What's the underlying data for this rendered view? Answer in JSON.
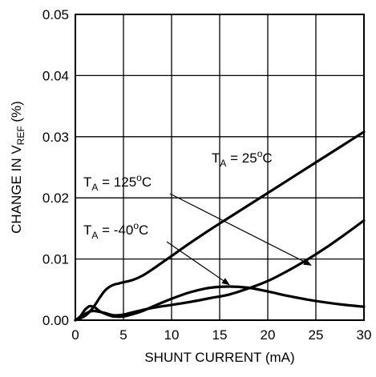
{
  "chart_data": {
    "type": "line",
    "xlabel": "SHUNT CURRENT (mA)",
    "ylabel": {
      "prefix": "CHANGE IN V",
      "subscript": "REF",
      "suffix": " (%)"
    },
    "xlim": [
      0,
      30
    ],
    "ylim": [
      0,
      0.05
    ],
    "x_ticks": [
      0,
      5,
      10,
      15,
      20,
      25,
      30
    ],
    "x_tick_labels": [
      "0",
      "5",
      "10",
      "15",
      "20",
      "25",
      "30"
    ],
    "y_ticks": [
      0,
      0.01,
      0.02,
      0.03,
      0.04,
      0.05
    ],
    "y_tick_labels": [
      "0.00",
      "0.01",
      "0.02",
      "0.03",
      "0.04",
      "0.05"
    ],
    "grid": true,
    "colors": {
      "line": "#000000",
      "grid": "#000000",
      "background": "#ffffff"
    },
    "series": [
      {
        "name": "T_A = 25°C",
        "x": [
          0,
          0.5,
          1,
          1.5,
          2,
          2.5,
          3,
          3.5,
          4,
          4.5,
          5,
          6,
          7,
          8,
          9,
          10,
          12,
          14,
          16,
          18,
          20,
          22,
          24,
          26,
          28,
          30
        ],
        "y": [
          0,
          0.0003,
          0.0007,
          0.0014,
          0.0024,
          0.0036,
          0.0047,
          0.0054,
          0.0058,
          0.006,
          0.0062,
          0.0066,
          0.0073,
          0.0083,
          0.0094,
          0.0105,
          0.0127,
          0.0148,
          0.0168,
          0.0188,
          0.0208,
          0.0228,
          0.0248,
          0.0268,
          0.0288,
          0.0308
        ]
      },
      {
        "name": "T_A = 125°C",
        "x": [
          0,
          0.5,
          1,
          1.5,
          2,
          3,
          4,
          5,
          6,
          8,
          10,
          12,
          14,
          16,
          18,
          20,
          22,
          24,
          26,
          28,
          30
        ],
        "y": [
          0,
          0.0004,
          0.001,
          0.0014,
          0.0015,
          0.0012,
          0.0008,
          0.0009,
          0.0013,
          0.002,
          0.0025,
          0.003,
          0.0036,
          0.0042,
          0.0052,
          0.0064,
          0.008,
          0.0098,
          0.0118,
          0.014,
          0.0163
        ]
      },
      {
        "name": "T_A = -40°C",
        "x": [
          0,
          0.5,
          1,
          1.5,
          2,
          2.5,
          3,
          3.5,
          4,
          5,
          6,
          7,
          8,
          10,
          12,
          14,
          16,
          18,
          20,
          22,
          24,
          26,
          28,
          30
        ],
        "y": [
          0,
          0.0006,
          0.0017,
          0.0023,
          0.0021,
          0.0015,
          0.0011,
          0.0008,
          0.0006,
          0.0006,
          0.001,
          0.0015,
          0.0022,
          0.0035,
          0.0046,
          0.0053,
          0.0055,
          0.0053,
          0.0047,
          0.004,
          0.0034,
          0.0029,
          0.0025,
          0.0022
        ]
      }
    ],
    "annotations": [
      {
        "text_main": "T",
        "text_sub": "A",
        "text_rest": " = 25",
        "text_sup": "o",
        "text_end": "C",
        "points_to": null
      },
      {
        "text_main": "T",
        "text_sub": "A",
        "text_rest": " = 125",
        "text_sup": "o",
        "text_end": "C",
        "points_to": {
          "x": 24.5,
          "y": 0.009
        }
      },
      {
        "text_main": "T",
        "text_sub": "A",
        "text_rest": " = -40",
        "text_sup": "o",
        "text_end": "C",
        "points_to": {
          "x": 16.0,
          "y": 0.0058
        }
      }
    ]
  }
}
